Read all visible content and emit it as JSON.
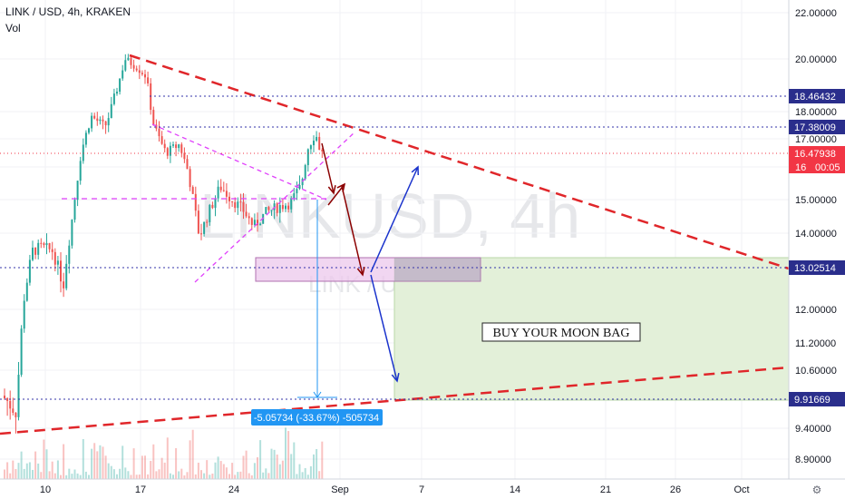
{
  "header": {
    "symbol": "LINK / USD, 4h, KRAKEN",
    "indicator": "Vol"
  },
  "watermark": {
    "main": "LINKUSD, 4h",
    "sub": "LINK / USD"
  },
  "colors": {
    "up": "#26a69a",
    "down": "#ef5350",
    "trend": "#e0262a",
    "triangle": "#e040fb",
    "levels": "#3333aa",
    "arrow_red": "#8b0000",
    "arrow_blue": "#1a33cc",
    "zone_green": "#e3f0d9",
    "zone_pink": "#ecc8ec",
    "measure": "#2196f3",
    "price_tag": "#f23645",
    "level_tag": "#2a2e8c"
  },
  "chart_data": {
    "type": "candlestick",
    "x_ticks": [
      "10",
      "17",
      "24",
      "Sep",
      "7",
      "14",
      "21",
      "26",
      "Oct"
    ],
    "y_ticks": [
      "22.00000",
      "20.00000",
      "18.00000",
      "17.00000",
      "16",
      "15.00000",
      "14.00000",
      "12.00000",
      "11.20000",
      "10.60000",
      "9.40000",
      "8.90000"
    ],
    "levels": [
      {
        "label": "18.46432",
        "value": 18.46432
      },
      {
        "label": "17.38009",
        "value": 17.38009
      },
      {
        "label": "13.02514",
        "value": 13.02514
      },
      {
        "label": "9.91669",
        "value": 9.91669
      }
    ],
    "last_price": {
      "label": "16.47938",
      "countdown": "00:05"
    },
    "annotations": {
      "moon_bag": "BUY YOUR MOON BAG",
      "measure": "-5.05734 (-33.67%) -505734"
    }
  }
}
